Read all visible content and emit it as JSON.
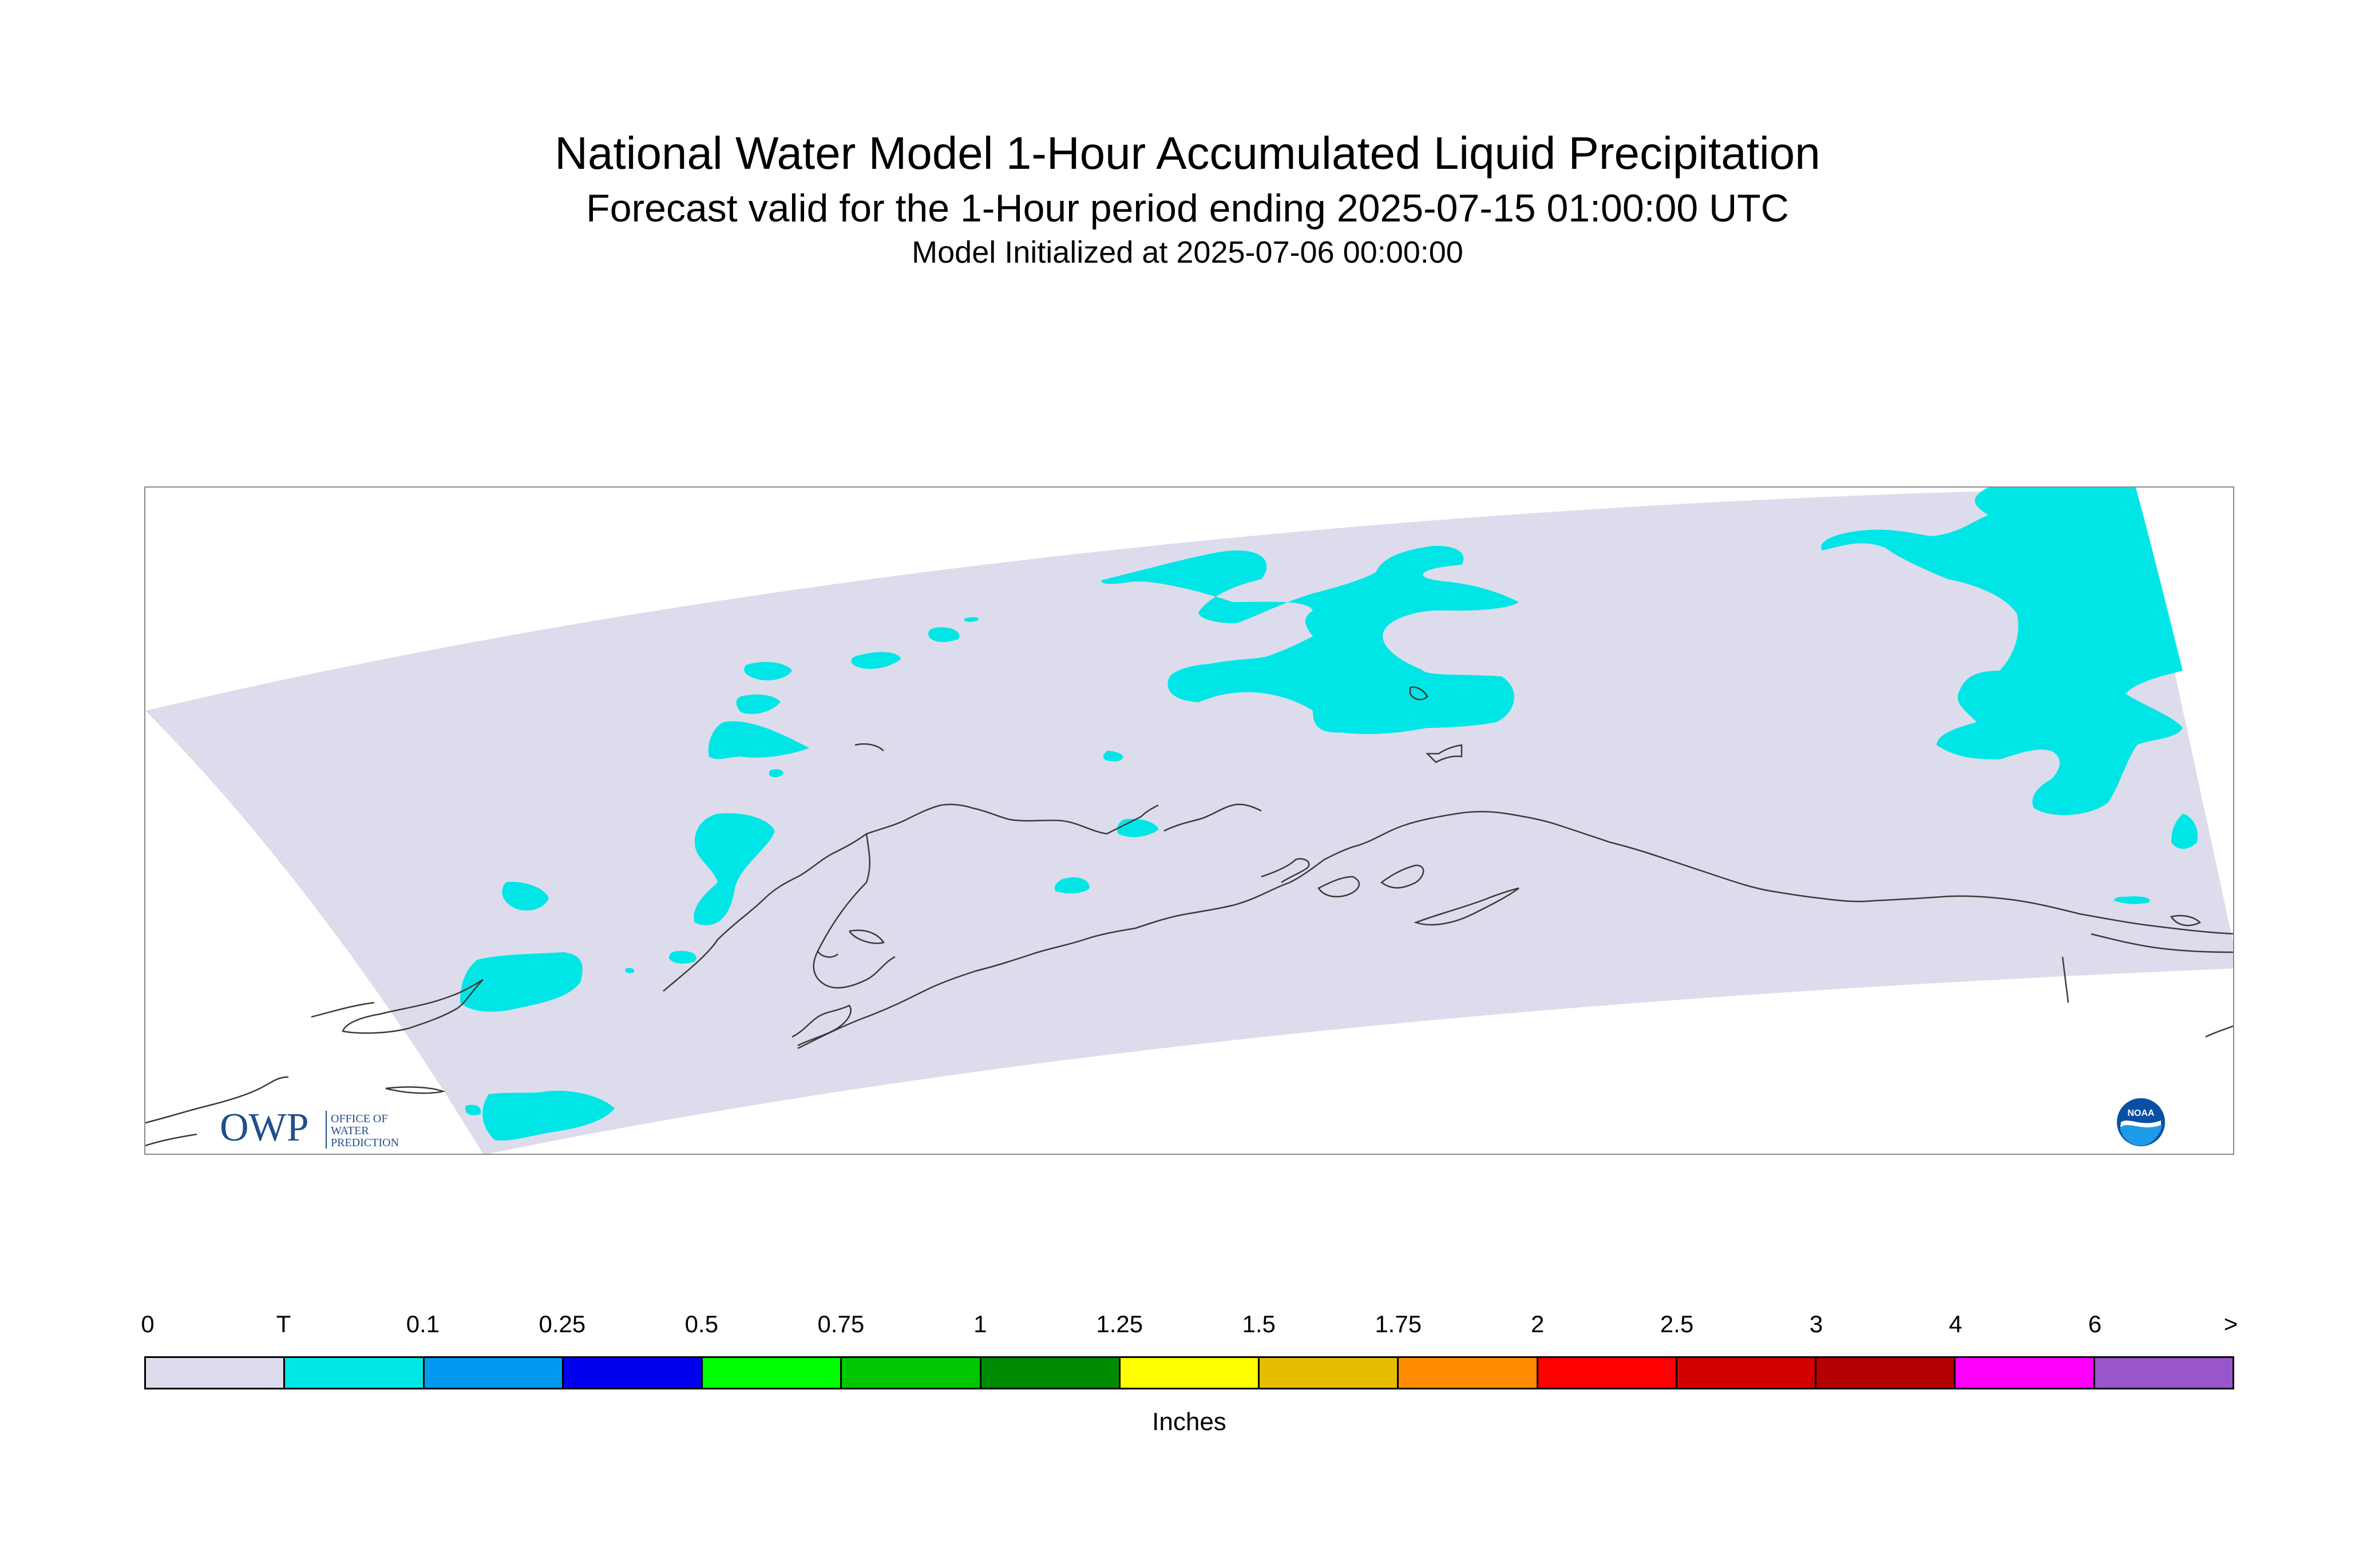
{
  "header": {
    "title": "National Water Model 1-Hour Accumulated Liquid Precipitation",
    "subtitle": "Forecast valid for the 1-Hour period ending 2025-07-15 01:00:00 UTC",
    "init": "Model Initialized at 2025-07-06 00:00:00"
  },
  "map": {
    "domain_fill": "#dcdcec",
    "precip_color": "#00e6e6",
    "coast_color": "#3a3a3a"
  },
  "logos": {
    "owp": {
      "mark": "OWP",
      "line1": "OFFICE OF",
      "line2": "WATER",
      "line3": "PREDICTION",
      "color": "#1f4e8c"
    },
    "noaa": {
      "text": "NOAA"
    }
  },
  "legend": {
    "labels": [
      "0",
      "T",
      "0.1",
      "0.25",
      "0.5",
      "0.75",
      "1",
      "1.25",
      "1.5",
      "1.75",
      "2",
      "2.5",
      "3",
      "4",
      "6",
      ">"
    ],
    "colors": [
      "#dcdcec",
      "#00e6e6",
      "#0099f0",
      "#0000f0",
      "#00ff00",
      "#00c800",
      "#008c00",
      "#ffff00",
      "#e6be00",
      "#ff8c00",
      "#ff0000",
      "#d20000",
      "#b40000",
      "#ff00ff",
      "#9955cc"
    ],
    "units": "Inches"
  }
}
